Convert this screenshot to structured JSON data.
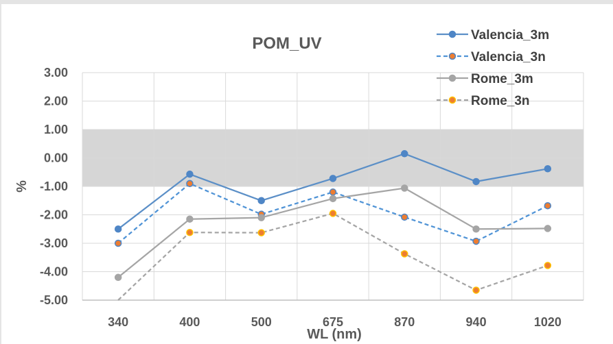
{
  "chart_data": {
    "type": "line",
    "title": "POM_UV",
    "xlabel": "WL (nm)",
    "ylabel": "%",
    "categories": [
      "340",
      "400",
      "500",
      "675",
      "870",
      "940",
      "1020"
    ],
    "ylim": [
      -5,
      3
    ],
    "yticks": [
      "3.00",
      "2.00",
      "1.00",
      "0.00",
      "-1.00",
      "-2.00",
      "-3.00",
      "-4.00",
      "-5.00"
    ],
    "shaded_band": [
      -1,
      1
    ],
    "grid": true,
    "legend_position": "top-right",
    "series": [
      {
        "name": "Valencia_3m",
        "values": [
          -2.5,
          -0.57,
          -1.5,
          -0.72,
          0.15,
          -0.83,
          -0.38
        ],
        "color": "#5b8fc7",
        "marker_color": "#4f86c6",
        "marker_edge": "#4f86c6",
        "dashed": false
      },
      {
        "name": "Valencia_3n",
        "values": [
          -3.0,
          -0.9,
          -1.98,
          -1.2,
          -2.08,
          -2.93,
          -1.68
        ],
        "color": "#4f93d6",
        "marker_color": "#ed7d31",
        "marker_edge": "#4f86c6",
        "dashed": true
      },
      {
        "name": "Rome_3m",
        "values": [
          -4.2,
          -2.15,
          -2.1,
          -1.43,
          -1.06,
          -2.5,
          -2.48
        ],
        "color": "#a5a5a5",
        "marker_color": "#a5a5a5",
        "marker_edge": "#a5a5a5",
        "dashed": false
      },
      {
        "name": "Rome_3n",
        "values": [
          -5.0,
          -2.62,
          -2.63,
          -1.95,
          -3.37,
          -4.65,
          -3.78
        ],
        "color": "#a5a5a5",
        "marker_color": "#ed7d31",
        "marker_edge": "#ffc000",
        "dashed": true,
        "first_marker": false
      }
    ]
  }
}
